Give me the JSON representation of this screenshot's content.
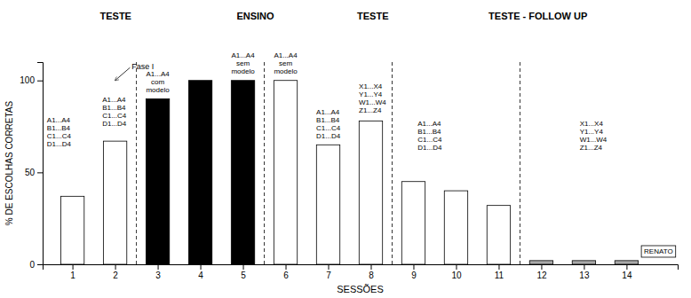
{
  "chart_data": {
    "type": "bar",
    "x": [
      1,
      2,
      3,
      4,
      5,
      6,
      7,
      8,
      9,
      10,
      11,
      12,
      13,
      14
    ],
    "values": [
      37,
      67,
      90,
      100,
      100,
      100,
      65,
      78,
      45,
      40,
      32,
      2,
      2,
      2
    ],
    "colors": [
      "white",
      "white",
      "black",
      "black",
      "black",
      "white",
      "white",
      "white",
      "white",
      "white",
      "white",
      "darkgray",
      "darkgray",
      "darkgray"
    ],
    "xlim": [
      0.3,
      15.2
    ],
    "xticks": [
      1,
      2,
      3,
      4,
      5,
      6,
      7,
      8,
      9,
      10,
      11,
      12,
      13,
      14
    ],
    "ylim": [
      0,
      110
    ],
    "yticks": [
      0,
      50,
      100
    ],
    "xlabel": "SESSÕES",
    "ylabel": "% DE ESCOLHAS CORRETAS",
    "grid": false,
    "vlines": [
      2.5,
      5.5,
      8.5,
      11.5
    ],
    "line_style": "dashed",
    "section_labels": [
      "TESTE",
      "ENSINO",
      "TESTE",
      "TESTE - FOLLOW UP"
    ],
    "arrow_annotation": "Fase I",
    "annotations": [
      [
        "A1...A4",
        "B1...B4",
        "C1...C4",
        "D1...D4"
      ],
      [
        "A1...A4",
        "B1...B4",
        "C1...C4",
        "D1...D4"
      ],
      [
        "A1...A4",
        "com",
        "modelo"
      ],
      [
        "A1...A4",
        "sem",
        "modelo"
      ],
      [
        "A1...A4",
        "sem",
        "modelo"
      ],
      [
        "A1...A4",
        "B1...B4",
        "C1...C4",
        "D1...D4"
      ],
      [
        "X1...X4",
        "Y1...Y4",
        "W1...W4",
        "Z1...Z4"
      ],
      [
        "A1...A4",
        "B1...B4",
        "C1...C4",
        "D1...D4"
      ],
      [
        "X1...X4",
        "Y1...Y4",
        "W1...W4",
        "Z1...Z4"
      ]
    ],
    "boxed_label": "RENATO"
  }
}
